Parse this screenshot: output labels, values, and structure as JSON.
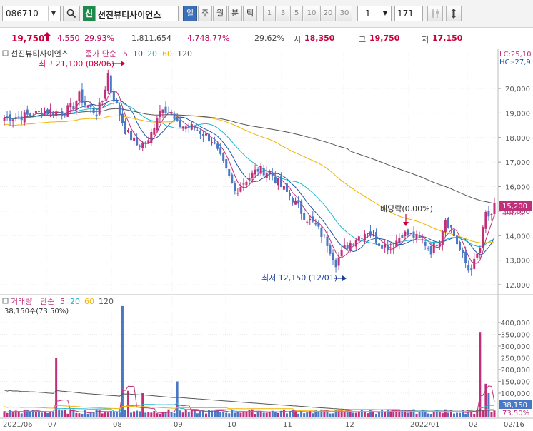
{
  "toolbar": {
    "code": "086710",
    "search_icon": "search-icon",
    "badge": "신",
    "name": "선진뷰티사이언스",
    "period_tabs": [
      "일",
      "주",
      "월",
      "분",
      "틱"
    ],
    "interval_buttons": [
      "1",
      "3",
      "5",
      "10",
      "20",
      "30"
    ],
    "unit_value": "1",
    "count_value": "171"
  },
  "quote": {
    "price": "19,750",
    "change": "4,550",
    "change_pct": "29.93%",
    "volume": "1,811,654",
    "volume_ratio": "4,748.77%",
    "turnover": "29.62%",
    "open_label": "시",
    "open": "18,350",
    "high_label": "고",
    "high": "19,750",
    "low_label": "저",
    "low": "17,150"
  },
  "price_panel": {
    "name": "선진뷰티사이언스",
    "ma_label": "종가 단순",
    "ma_periods": [
      "5",
      "10",
      "20",
      "60",
      "120"
    ],
    "ma_colors": [
      "#c0307a",
      "#1e56a8",
      "#1ab8d0",
      "#f0b400",
      "#555555"
    ],
    "high_note": "최고 21,100 (08/06)",
    "low_note": "최저 12,150 (12/01)",
    "dividend_note": "배당락(0.00%)",
    "lc": "LC:25,10",
    "hc": "HC:-27,9",
    "last_price": "15,200",
    "last_pct": "4.83%",
    "y_ticks": [
      "20,000",
      "19,000",
      "18,000",
      "17,000",
      "16,000",
      "15,000",
      "14,000",
      "13,000",
      "12,000"
    ]
  },
  "volume_panel": {
    "label": "거래량",
    "ma_label": "단순",
    "ma_periods": [
      "5",
      "20",
      "60",
      "120"
    ],
    "current": "38,150주(73.50%)",
    "last_value": "38,150",
    "last_pct": "73.50%",
    "y_ticks": [
      "400,000",
      "350,000",
      "300,000",
      "250,000",
      "200,000",
      "150,000",
      "100,000"
    ]
  },
  "x_labels": [
    "2021/06",
    "07",
    "08",
    "09",
    "10",
    "11",
    "12",
    "2022/01",
    "02",
    "02/16"
  ],
  "chart_data": {
    "type": "candlestick",
    "price_axis": {
      "min": 12000,
      "max": 20000
    },
    "volume_axis": {
      "max": 400000
    },
    "price_waypoints": [
      [
        0,
        18800
      ],
      [
        8,
        18900
      ],
      [
        15,
        19100
      ],
      [
        20,
        19000
      ],
      [
        24,
        19300
      ],
      [
        26,
        19700
      ],
      [
        28,
        19350
      ],
      [
        32,
        19000
      ],
      [
        34,
        19500
      ],
      [
        36,
        20600
      ],
      [
        37,
        19900
      ],
      [
        39,
        19300
      ],
      [
        42,
        18300
      ],
      [
        46,
        17700
      ],
      [
        50,
        17800
      ],
      [
        53,
        18900
      ],
      [
        55,
        19300
      ],
      [
        57,
        19050
      ],
      [
        60,
        18500
      ],
      [
        66,
        18400
      ],
      [
        72,
        17900
      ],
      [
        76,
        16900
      ],
      [
        80,
        15800
      ],
      [
        84,
        16300
      ],
      [
        88,
        16700
      ],
      [
        92,
        16600
      ],
      [
        96,
        16000
      ],
      [
        100,
        15500
      ],
      [
        104,
        14800
      ],
      [
        108,
        14400
      ],
      [
        112,
        13700
      ],
      [
        115,
        12900
      ],
      [
        118,
        13500
      ],
      [
        122,
        13900
      ],
      [
        126,
        14200
      ],
      [
        130,
        13700
      ],
      [
        134,
        13500
      ],
      [
        138,
        14100
      ],
      [
        141,
        14000
      ],
      [
        145,
        13800
      ],
      [
        148,
        13400
      ],
      [
        151,
        13900
      ],
      [
        153,
        14700
      ],
      [
        155,
        14300
      ],
      [
        158,
        13400
      ],
      [
        161,
        12600
      ],
      [
        163,
        12900
      ],
      [
        165,
        13500
      ],
      [
        167,
        14900
      ],
      [
        169,
        14700
      ],
      [
        170,
        15200
      ]
    ],
    "volume_spikes": [
      [
        18,
        250000
      ],
      [
        41,
        470000
      ],
      [
        43,
        110000
      ],
      [
        48,
        100000
      ],
      [
        60,
        150000
      ],
      [
        159,
        30000
      ],
      [
        165,
        360000
      ],
      [
        167,
        140000
      ],
      [
        168,
        100000
      ]
    ],
    "volume_baseline": 22000
  }
}
